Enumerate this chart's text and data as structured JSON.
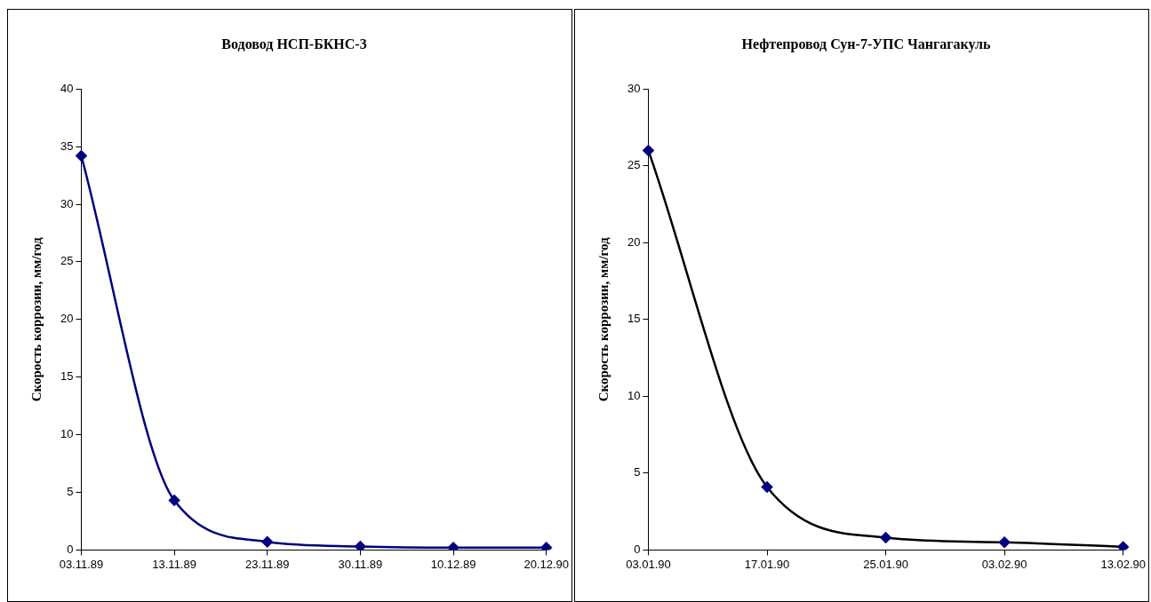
{
  "chart_data": [
    {
      "type": "line",
      "title": "Водовод НСП-БКНС-3",
      "ylabel": "Скорость коррозии, мм/год",
      "categories": [
        "03.11.89",
        "13.11.89",
        "23.11.89",
        "30.11.89",
        "10.12.89",
        "20.12.90"
      ],
      "series": [
        {
          "color": "#000080",
          "values": [
            34.2,
            4.3,
            0.7,
            0.3,
            0.2,
            0.2
          ]
        }
      ],
      "ylim": [
        0,
        40
      ],
      "yticks": [
        0,
        5,
        10,
        15,
        20,
        25,
        30,
        35,
        40
      ],
      "grid": false,
      "legend": false,
      "marker": "diamond",
      "line_style": "solid"
    },
    {
      "type": "line",
      "title": "Нефтепровод Сун-7-УПС Чангагакуль",
      "ylabel": "Скорость коррозии, мм/год",
      "categories": [
        "03.01.90",
        "17.01.90",
        "25.01.90",
        "03.02.90",
        "13.02.90"
      ],
      "series": [
        {
          "color": "#000000",
          "values": [
            26,
            4.1,
            0.8,
            0.5,
            0.2
          ]
        }
      ],
      "ylim": [
        0,
        30
      ],
      "yticks": [
        0,
        5,
        10,
        15,
        20,
        25,
        30
      ],
      "grid": false,
      "legend": false,
      "marker": "diamond",
      "line_style": "solid"
    }
  ]
}
